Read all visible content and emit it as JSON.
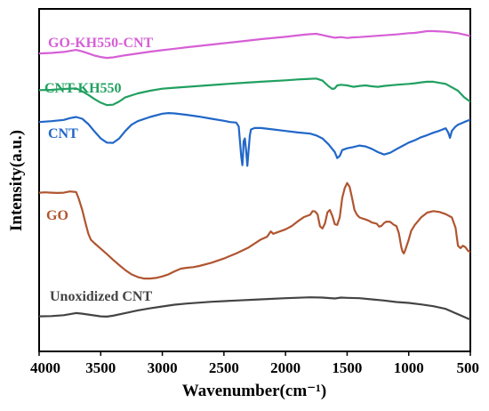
{
  "chart_data": {
    "type": "line",
    "title": "",
    "xlabel": "Wavenumber(cm⁻¹)",
    "ylabel": "Intensity(a.u.)",
    "xlim": [
      4000,
      500
    ],
    "x_reversed": true,
    "x_ticks": [
      4000,
      3500,
      3000,
      2500,
      2000,
      1500,
      1000,
      500
    ],
    "y_ticks_shown": false,
    "ylim": [
      0,
      100
    ],
    "grid": false,
    "legend": "inline-labels",
    "series": [
      {
        "name": "GO-KH550-CNT",
        "color": "#d65fd6",
        "points": [
          [
            4000,
            92.5
          ],
          [
            3900,
            92.7
          ],
          [
            3800,
            93.0
          ],
          [
            3700,
            93.7
          ],
          [
            3650,
            93.2
          ],
          [
            3600,
            92.5
          ],
          [
            3550,
            91.8
          ],
          [
            3500,
            91.3
          ],
          [
            3450,
            91.0
          ],
          [
            3400,
            91.2
          ],
          [
            3300,
            91.9
          ],
          [
            3200,
            92.5
          ],
          [
            3100,
            93.1
          ],
          [
            3000,
            93.6
          ],
          [
            2900,
            94.1
          ],
          [
            2800,
            94.6
          ],
          [
            2600,
            95.5
          ],
          [
            2400,
            96.4
          ],
          [
            2200,
            97.3
          ],
          [
            2000,
            98.1
          ],
          [
            1850,
            98.8
          ],
          [
            1800,
            99.0
          ],
          [
            1750,
            99.1
          ],
          [
            1700,
            98.7
          ],
          [
            1650,
            98.2
          ],
          [
            1600,
            97.8
          ],
          [
            1550,
            98.0
          ],
          [
            1500,
            97.7
          ],
          [
            1450,
            97.9
          ],
          [
            1400,
            98.0
          ],
          [
            1300,
            98.3
          ],
          [
            1200,
            98.6
          ],
          [
            1100,
            98.9
          ],
          [
            1000,
            99.3
          ],
          [
            950,
            99.4
          ],
          [
            900,
            99.7
          ],
          [
            850,
            100.0
          ],
          [
            800,
            100.0
          ],
          [
            700,
            99.8
          ],
          [
            600,
            99.3
          ],
          [
            500,
            98.4
          ]
        ]
      },
      {
        "name": "CNT-KH550",
        "color": "#21a060",
        "points": [
          [
            4000,
            80.2
          ],
          [
            3900,
            80.3
          ],
          [
            3800,
            80.6
          ],
          [
            3700,
            80.8
          ],
          [
            3650,
            79.8
          ],
          [
            3600,
            78.6
          ],
          [
            3550,
            77.2
          ],
          [
            3500,
            76.0
          ],
          [
            3450,
            75.2
          ],
          [
            3400,
            75.3
          ],
          [
            3350,
            76.4
          ],
          [
            3300,
            77.8
          ],
          [
            3200,
            79.1
          ],
          [
            3100,
            80.0
          ],
          [
            3000,
            80.7
          ],
          [
            2900,
            81.0
          ],
          [
            2800,
            81.3
          ],
          [
            2600,
            81.9
          ],
          [
            2400,
            82.5
          ],
          [
            2200,
            83.0
          ],
          [
            2000,
            83.5
          ],
          [
            1900,
            83.8
          ],
          [
            1800,
            84.0
          ],
          [
            1750,
            84.1
          ],
          [
            1700,
            83.4
          ],
          [
            1650,
            81.5
          ],
          [
            1620,
            80.6
          ],
          [
            1600,
            80.8
          ],
          [
            1580,
            81.8
          ],
          [
            1550,
            82.0
          ],
          [
            1500,
            81.8
          ],
          [
            1450,
            81.3
          ],
          [
            1400,
            81.6
          ],
          [
            1350,
            81.8
          ],
          [
            1300,
            81.5
          ],
          [
            1250,
            81.3
          ],
          [
            1200,
            81.6
          ],
          [
            1100,
            82.0
          ],
          [
            1000,
            82.3
          ],
          [
            950,
            82.5
          ],
          [
            900,
            82.8
          ],
          [
            850,
            83.0
          ],
          [
            800,
            83.0
          ],
          [
            700,
            82.3
          ],
          [
            600,
            80.0
          ],
          [
            550,
            77.8
          ],
          [
            500,
            76.3
          ]
        ]
      },
      {
        "name": "CNT",
        "color": "#2167c8",
        "points": [
          [
            4000,
            69.5
          ],
          [
            3900,
            69.8
          ],
          [
            3800,
            70.2
          ],
          [
            3750,
            70.8
          ],
          [
            3700,
            71.2
          ],
          [
            3650,
            70.6
          ],
          [
            3600,
            68.8
          ],
          [
            3550,
            66.3
          ],
          [
            3500,
            64.0
          ],
          [
            3450,
            62.6
          ],
          [
            3400,
            62.5
          ],
          [
            3350,
            64.0
          ],
          [
            3300,
            66.5
          ],
          [
            3250,
            68.6
          ],
          [
            3200,
            69.8
          ],
          [
            3100,
            71.2
          ],
          [
            3000,
            72.3
          ],
          [
            2950,
            72.5
          ],
          [
            2900,
            72.4
          ],
          [
            2800,
            71.9
          ],
          [
            2700,
            71.3
          ],
          [
            2600,
            70.6
          ],
          [
            2500,
            69.9
          ],
          [
            2450,
            69.5
          ],
          [
            2400,
            69.3
          ],
          [
            2380,
            68.0
          ],
          [
            2370,
            63.0
          ],
          [
            2360,
            58.0
          ],
          [
            2350,
            55.0
          ],
          [
            2345,
            58.0
          ],
          [
            2340,
            63.0
          ],
          [
            2330,
            64.0
          ],
          [
            2320,
            60.0
          ],
          [
            2310,
            54.8
          ],
          [
            2300,
            60.0
          ],
          [
            2290,
            65.0
          ],
          [
            2280,
            67.0
          ],
          [
            2250,
            67.5
          ],
          [
            2200,
            67.5
          ],
          [
            2100,
            67.0
          ],
          [
            2000,
            66.5
          ],
          [
            1900,
            66.0
          ],
          [
            1800,
            65.6
          ],
          [
            1750,
            65.0
          ],
          [
            1700,
            64.0
          ],
          [
            1650,
            62.0
          ],
          [
            1600,
            59.4
          ],
          [
            1580,
            57.4
          ],
          [
            1560,
            58.1
          ],
          [
            1540,
            60.1
          ],
          [
            1500,
            60.7
          ],
          [
            1450,
            61.1
          ],
          [
            1400,
            61.6
          ],
          [
            1350,
            61.3
          ],
          [
            1300,
            60.5
          ],
          [
            1250,
            59.4
          ],
          [
            1200,
            58.6
          ],
          [
            1150,
            59.2
          ],
          [
            1100,
            60.4
          ],
          [
            1050,
            61.5
          ],
          [
            1000,
            62.6
          ],
          [
            950,
            63.4
          ],
          [
            900,
            64.4
          ],
          [
            850,
            65.1
          ],
          [
            800,
            65.9
          ],
          [
            750,
            66.6
          ],
          [
            700,
            67.4
          ],
          [
            680,
            66.0
          ],
          [
            665,
            64.2
          ],
          [
            650,
            66.5
          ],
          [
            620,
            68.0
          ],
          [
            600,
            68.6
          ],
          [
            550,
            69.5
          ],
          [
            500,
            70.3
          ]
        ]
      },
      {
        "name": "GO",
        "color": "#b05530",
        "points": [
          [
            4000,
            45.8
          ],
          [
            3950,
            45.9
          ],
          [
            3900,
            45.8
          ],
          [
            3850,
            45.7
          ],
          [
            3800,
            45.8
          ],
          [
            3750,
            46.2
          ],
          [
            3700,
            46.0
          ],
          [
            3680,
            44.0
          ],
          [
            3650,
            40.0
          ],
          [
            3620,
            35.0
          ],
          [
            3600,
            32.0
          ],
          [
            3580,
            30.0
          ],
          [
            3550,
            28.8
          ],
          [
            3500,
            27.0
          ],
          [
            3450,
            25.2
          ],
          [
            3400,
            23.3
          ],
          [
            3350,
            21.5
          ],
          [
            3300,
            19.8
          ],
          [
            3250,
            18.4
          ],
          [
            3200,
            17.5
          ],
          [
            3150,
            17.0
          ],
          [
            3100,
            17.0
          ],
          [
            3050,
            17.2
          ],
          [
            3000,
            17.7
          ],
          [
            2950,
            18.4
          ],
          [
            2900,
            19.4
          ],
          [
            2850,
            20.3
          ],
          [
            2800,
            20.6
          ],
          [
            2750,
            20.8
          ],
          [
            2700,
            21.2
          ],
          [
            2600,
            22.3
          ],
          [
            2500,
            23.7
          ],
          [
            2400,
            25.4
          ],
          [
            2300,
            27.4
          ],
          [
            2200,
            30.1
          ],
          [
            2150,
            31.0
          ],
          [
            2120,
            32.8
          ],
          [
            2100,
            32.0
          ],
          [
            2000,
            33.5
          ],
          [
            1950,
            34.6
          ],
          [
            1900,
            36.2
          ],
          [
            1850,
            37.6
          ],
          [
            1800,
            38.4
          ],
          [
            1780,
            39.6
          ],
          [
            1760,
            39.5
          ],
          [
            1740,
            38.5
          ],
          [
            1720,
            34.5
          ],
          [
            1700,
            33.8
          ],
          [
            1680,
            35.5
          ],
          [
            1660,
            39.2
          ],
          [
            1640,
            40.0
          ],
          [
            1620,
            38.0
          ],
          [
            1600,
            35.2
          ],
          [
            1580,
            35.0
          ],
          [
            1560,
            37.5
          ],
          [
            1540,
            44.0
          ],
          [
            1520,
            47.3
          ],
          [
            1500,
            49.0
          ],
          [
            1480,
            47.8
          ],
          [
            1460,
            44.0
          ],
          [
            1440,
            40.0
          ],
          [
            1420,
            38.4
          ],
          [
            1400,
            37.5
          ],
          [
            1380,
            37.2
          ],
          [
            1350,
            36.8
          ],
          [
            1320,
            36.3
          ],
          [
            1300,
            35.8
          ],
          [
            1260,
            35.4
          ],
          [
            1240,
            34.4
          ],
          [
            1220,
            34.7
          ],
          [
            1200,
            35.6
          ],
          [
            1180,
            36.1
          ],
          [
            1150,
            36.0
          ],
          [
            1120,
            35.0
          ],
          [
            1100,
            34.6
          ],
          [
            1080,
            32.2
          ],
          [
            1060,
            27.5
          ],
          [
            1050,
            26.0
          ],
          [
            1040,
            25.4
          ],
          [
            1030,
            26.4
          ],
          [
            1000,
            30.0
          ],
          [
            980,
            33.0
          ],
          [
            950,
            35.0
          ],
          [
            900,
            37.5
          ],
          [
            850,
            39.1
          ],
          [
            800,
            39.6
          ],
          [
            750,
            39.3
          ],
          [
            700,
            38.6
          ],
          [
            650,
            37.5
          ],
          [
            620,
            34.0
          ],
          [
            600,
            28.0
          ],
          [
            580,
            27.2
          ],
          [
            560,
            28.0
          ],
          [
            540,
            27.5
          ],
          [
            520,
            26.4
          ],
          [
            500,
            25.8
          ]
        ]
      },
      {
        "name": "Unoxidized CNT",
        "color": "#444444",
        "points": [
          [
            4000,
            4.3
          ],
          [
            3900,
            4.4
          ],
          [
            3800,
            4.7
          ],
          [
            3700,
            5.4
          ],
          [
            3650,
            5.2
          ],
          [
            3600,
            4.9
          ],
          [
            3550,
            4.6
          ],
          [
            3500,
            4.3
          ],
          [
            3450,
            4.2
          ],
          [
            3400,
            4.5
          ],
          [
            3300,
            5.4
          ],
          [
            3200,
            6.3
          ],
          [
            3100,
            7.0
          ],
          [
            3000,
            7.6
          ],
          [
            2900,
            8.2
          ],
          [
            2800,
            8.6
          ],
          [
            2600,
            9.2
          ],
          [
            2400,
            9.6
          ],
          [
            2200,
            10.0
          ],
          [
            2000,
            10.4
          ],
          [
            1800,
            10.7
          ],
          [
            1700,
            10.6
          ],
          [
            1600,
            10.3
          ],
          [
            1550,
            10.6
          ],
          [
            1500,
            10.5
          ],
          [
            1400,
            10.4
          ],
          [
            1300,
            10.0
          ],
          [
            1200,
            9.6
          ],
          [
            1100,
            9.1
          ],
          [
            1000,
            8.8
          ],
          [
            900,
            8.3
          ],
          [
            800,
            7.7
          ],
          [
            700,
            6.8
          ],
          [
            600,
            5.0
          ],
          [
            500,
            3.2
          ]
        ]
      }
    ]
  }
}
